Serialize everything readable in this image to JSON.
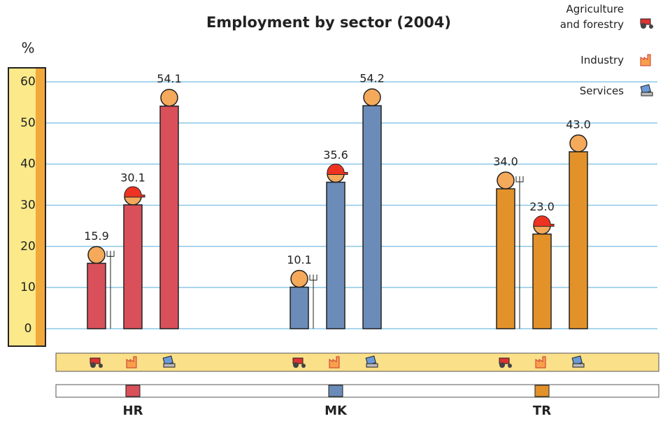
{
  "chart_data": {
    "type": "bar",
    "title": "Employment by sector (2004)",
    "y_label": "%",
    "categories": [
      "HR",
      "MK",
      "TR"
    ],
    "category_colors": [
      "#d9505a",
      "#6b8cb8",
      "#e3922a"
    ],
    "series": [
      {
        "name": "Agriculture and forestry",
        "values": [
          15.9,
          10.1,
          34.0
        ],
        "value_labels": [
          "15.9",
          "10.1",
          "34.0"
        ]
      },
      {
        "name": "Industry",
        "values": [
          30.1,
          35.6,
          23.0
        ],
        "value_labels": [
          "30.1",
          "35.6",
          "23.0"
        ]
      },
      {
        "name": "Services",
        "values": [
          54.1,
          54.2,
          43.0
        ],
        "value_labels": [
          "54.1",
          "54.2",
          "43.0"
        ]
      }
    ],
    "ylim": [
      0,
      60
    ],
    "yticks": [
      0,
      10,
      20,
      30,
      40,
      50,
      60
    ],
    "grid": true
  }
}
